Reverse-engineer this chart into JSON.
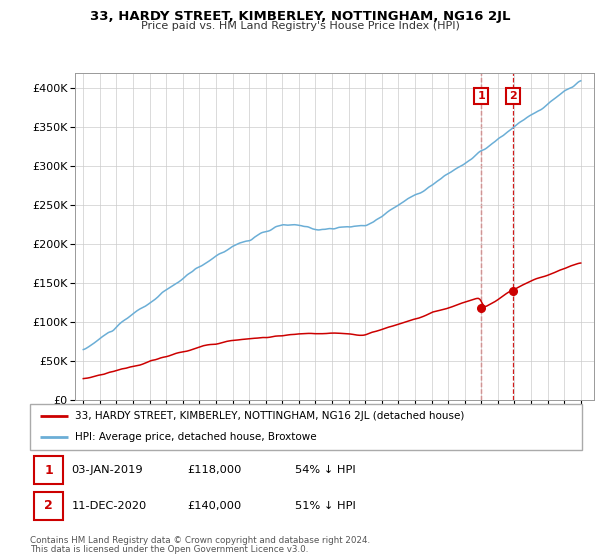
{
  "title": "33, HARDY STREET, KIMBERLEY, NOTTINGHAM, NG16 2JL",
  "subtitle": "Price paid vs. HM Land Registry's House Price Index (HPI)",
  "legend_line1": "33, HARDY STREET, KIMBERLEY, NOTTINGHAM, NG16 2JL (detached house)",
  "legend_line2": "HPI: Average price, detached house, Broxtowe",
  "footnote1": "Contains HM Land Registry data © Crown copyright and database right 2024.",
  "footnote2": "This data is licensed under the Open Government Licence v3.0.",
  "annotation1_date": "03-JAN-2019",
  "annotation1_price": "£118,000",
  "annotation1_hpi": "54% ↓ HPI",
  "annotation2_date": "11-DEC-2020",
  "annotation2_price": "£140,000",
  "annotation2_hpi": "51% ↓ HPI",
  "red_color": "#cc0000",
  "blue_color": "#6baed6",
  "vline_color": "#cc0000",
  "box_color": "#cc0000",
  "grid_color": "#cccccc",
  "ylim": [
    0,
    420000
  ],
  "yticks": [
    0,
    50000,
    100000,
    150000,
    200000,
    250000,
    300000,
    350000,
    400000
  ],
  "xlim_start": 1994.5,
  "xlim_end": 2025.8,
  "ann1_x": 2019.01,
  "ann1_y": 118000,
  "ann2_x": 2020.92,
  "ann2_y": 140000
}
